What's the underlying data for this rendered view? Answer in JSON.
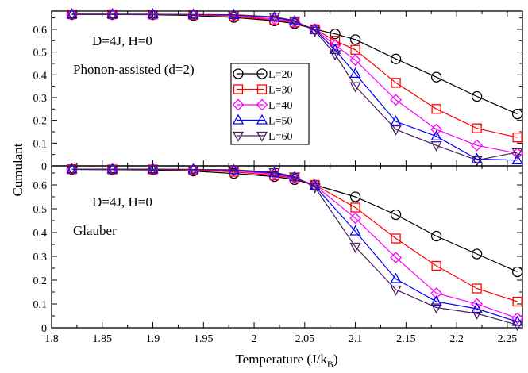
{
  "chart_data": {
    "type": "line",
    "shared_x": {
      "label_prefix": "Temperature (J/k",
      "label_sub": "B",
      "label_suffix": ")",
      "lim": [
        1.8,
        2.265
      ],
      "ticks": [
        1.8,
        1.85,
        1.9,
        1.95,
        2,
        2.05,
        2.1,
        2.15,
        2.2,
        2.25
      ],
      "tick_labels": [
        "1.8",
        "1.85",
        "1.9",
        "1.95",
        "2",
        "2.05",
        "2.1",
        "2.15",
        "2.2",
        "2.25"
      ]
    },
    "ylabel": "Cumulant",
    "legend": {
      "placement": "inside-top-center of top panel",
      "entries": [
        {
          "label": "L=20",
          "color": "#000000",
          "marker": "circle"
        },
        {
          "label": "L=30",
          "color": "#ff0000",
          "marker": "square"
        },
        {
          "label": "L=40",
          "color": "#ff00ff",
          "marker": "diamond"
        },
        {
          "label": "L=50",
          "color": "#0000ff",
          "marker": "triangle-up"
        },
        {
          "label": "L=60",
          "color": "#4b1f5e",
          "marker": "triangle-down"
        }
      ]
    },
    "panels": [
      {
        "id": "top",
        "annotations": [
          "D=4J, H=0",
          "Phonon-assisted (d=2)"
        ],
        "ylim": [
          0,
          0.68
        ],
        "yticks": [
          0,
          0.1,
          0.2,
          0.3,
          0.4,
          0.5,
          0.6
        ],
        "ytick_labels": [
          "0",
          "0.1",
          "0.2",
          "0.3",
          "0.4",
          "0.5",
          "0.6"
        ],
        "series": [
          {
            "name": "L=20",
            "x": [
              1.82,
              1.86,
              1.9,
              1.94,
              1.98,
              2.02,
              2.04,
              2.06,
              2.08,
              2.1,
              2.14,
              2.18,
              2.22,
              2.26
            ],
            "y": [
              0.665,
              0.665,
              0.664,
              0.66,
              0.652,
              0.637,
              0.625,
              0.6,
              0.58,
              0.555,
              0.47,
              0.39,
              0.305,
              0.228
            ]
          },
          {
            "name": "L=30",
            "x": [
              1.82,
              1.86,
              1.9,
              1.94,
              1.98,
              2.02,
              2.04,
              2.06,
              2.08,
              2.1,
              2.14,
              2.18,
              2.22,
              2.26
            ],
            "y": [
              0.666,
              0.666,
              0.665,
              0.663,
              0.658,
              0.64,
              0.63,
              0.6,
              0.55,
              0.51,
              0.365,
              0.25,
              0.165,
              0.125
            ]
          },
          {
            "name": "L=40",
            "x": [
              1.82,
              1.86,
              1.9,
              1.94,
              1.98,
              2.02,
              2.04,
              2.06,
              2.08,
              2.1,
              2.14,
              2.18,
              2.22,
              2.26
            ],
            "y": [
              0.666,
              0.666,
              0.665,
              0.664,
              0.66,
              0.645,
              0.632,
              0.6,
              0.53,
              0.465,
              0.29,
              0.16,
              0.09,
              0.055
            ]
          },
          {
            "name": "L=50",
            "x": [
              1.82,
              1.86,
              1.9,
              1.94,
              1.98,
              2.02,
              2.04,
              2.06,
              2.08,
              2.1,
              2.14,
              2.18,
              2.22,
              2.26
            ],
            "y": [
              0.666,
              0.666,
              0.666,
              0.665,
              0.663,
              0.652,
              0.635,
              0.598,
              0.51,
              0.405,
              0.195,
              0.13,
              0.03,
              0.025
            ]
          },
          {
            "name": "L=60",
            "x": [
              1.82,
              1.86,
              1.9,
              1.94,
              1.98,
              2.02,
              2.04,
              2.06,
              2.08,
              2.1,
              2.14,
              2.18,
              2.22,
              2.26
            ],
            "y": [
              0.666,
              0.666,
              0.666,
              0.665,
              0.664,
              0.655,
              0.638,
              0.593,
              0.49,
              0.35,
              0.16,
              0.09,
              0.025,
              0.06
            ]
          }
        ]
      },
      {
        "id": "bottom",
        "annotations": [
          "D=4J, H=0",
          "Glauber"
        ],
        "ylim": [
          0,
          0.68
        ],
        "yticks": [
          0,
          0.1,
          0.2,
          0.3,
          0.4,
          0.5,
          0.6
        ],
        "ytick_labels": [
          "0",
          "0.1",
          "0.2",
          "0.3",
          "0.4",
          "0.5",
          "0.6"
        ],
        "series": [
          {
            "name": "L=20",
            "x": [
              1.82,
              1.86,
              1.9,
              1.94,
              1.98,
              2.02,
              2.04,
              2.06,
              2.1,
              2.14,
              2.18,
              2.22,
              2.26
            ],
            "y": [
              0.665,
              0.664,
              0.663,
              0.658,
              0.648,
              0.635,
              0.622,
              0.6,
              0.55,
              0.475,
              0.385,
              0.31,
              0.235
            ]
          },
          {
            "name": "L=30",
            "x": [
              1.82,
              1.86,
              1.9,
              1.94,
              1.98,
              2.02,
              2.04,
              2.06,
              2.1,
              2.14,
              2.18,
              2.22,
              2.26
            ],
            "y": [
              0.666,
              0.665,
              0.665,
              0.662,
              0.655,
              0.64,
              0.628,
              0.6,
              0.505,
              0.375,
              0.26,
              0.165,
              0.11
            ]
          },
          {
            "name": "L=40",
            "x": [
              1.82,
              1.86,
              1.9,
              1.94,
              1.98,
              2.02,
              2.04,
              2.06,
              2.1,
              2.14,
              2.18,
              2.22,
              2.26
            ],
            "y": [
              0.666,
              0.666,
              0.666,
              0.664,
              0.66,
              0.645,
              0.63,
              0.598,
              0.46,
              0.295,
              0.145,
              0.1,
              0.04
            ]
          },
          {
            "name": "L=50",
            "x": [
              1.82,
              1.86,
              1.9,
              1.94,
              1.98,
              2.02,
              2.04,
              2.06,
              2.1,
              2.14,
              2.18,
              2.22,
              2.26
            ],
            "y": [
              0.666,
              0.666,
              0.666,
              0.665,
              0.662,
              0.65,
              0.632,
              0.595,
              0.405,
              0.205,
              0.11,
              0.08,
              0.025
            ]
          },
          {
            "name": "L=60",
            "x": [
              1.82,
              1.86,
              1.9,
              1.94,
              1.98,
              2.02,
              2.04,
              2.06,
              2.1,
              2.14,
              2.18,
              2.22,
              2.26
            ],
            "y": [
              0.666,
              0.666,
              0.666,
              0.665,
              0.664,
              0.653,
              0.635,
              0.59,
              0.34,
              0.16,
              0.085,
              0.06,
              0.012
            ]
          }
        ]
      }
    ]
  }
}
